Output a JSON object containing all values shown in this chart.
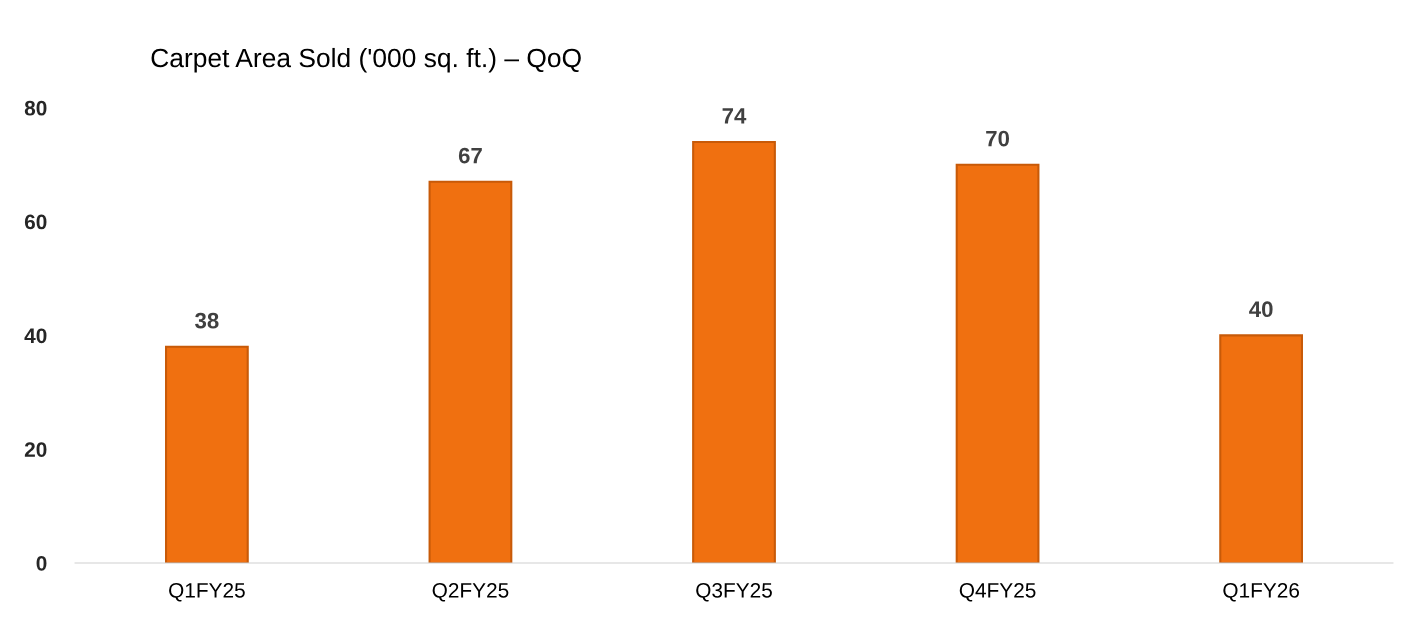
{
  "chart_data": {
    "type": "bar",
    "title": "Carpet Area Sold ('000 sq. ft.) – QoQ",
    "categories": [
      "Q1FY25",
      "Q2FY25",
      "Q3FY25",
      "Q4FY25",
      "Q1FY26"
    ],
    "values": [
      38,
      67,
      74,
      70,
      40
    ],
    "color": "#f07010",
    "ylim": [
      0,
      80
    ],
    "yticks": [
      0,
      20,
      40,
      60,
      80
    ],
    "grid": false,
    "data_labels": true
  }
}
